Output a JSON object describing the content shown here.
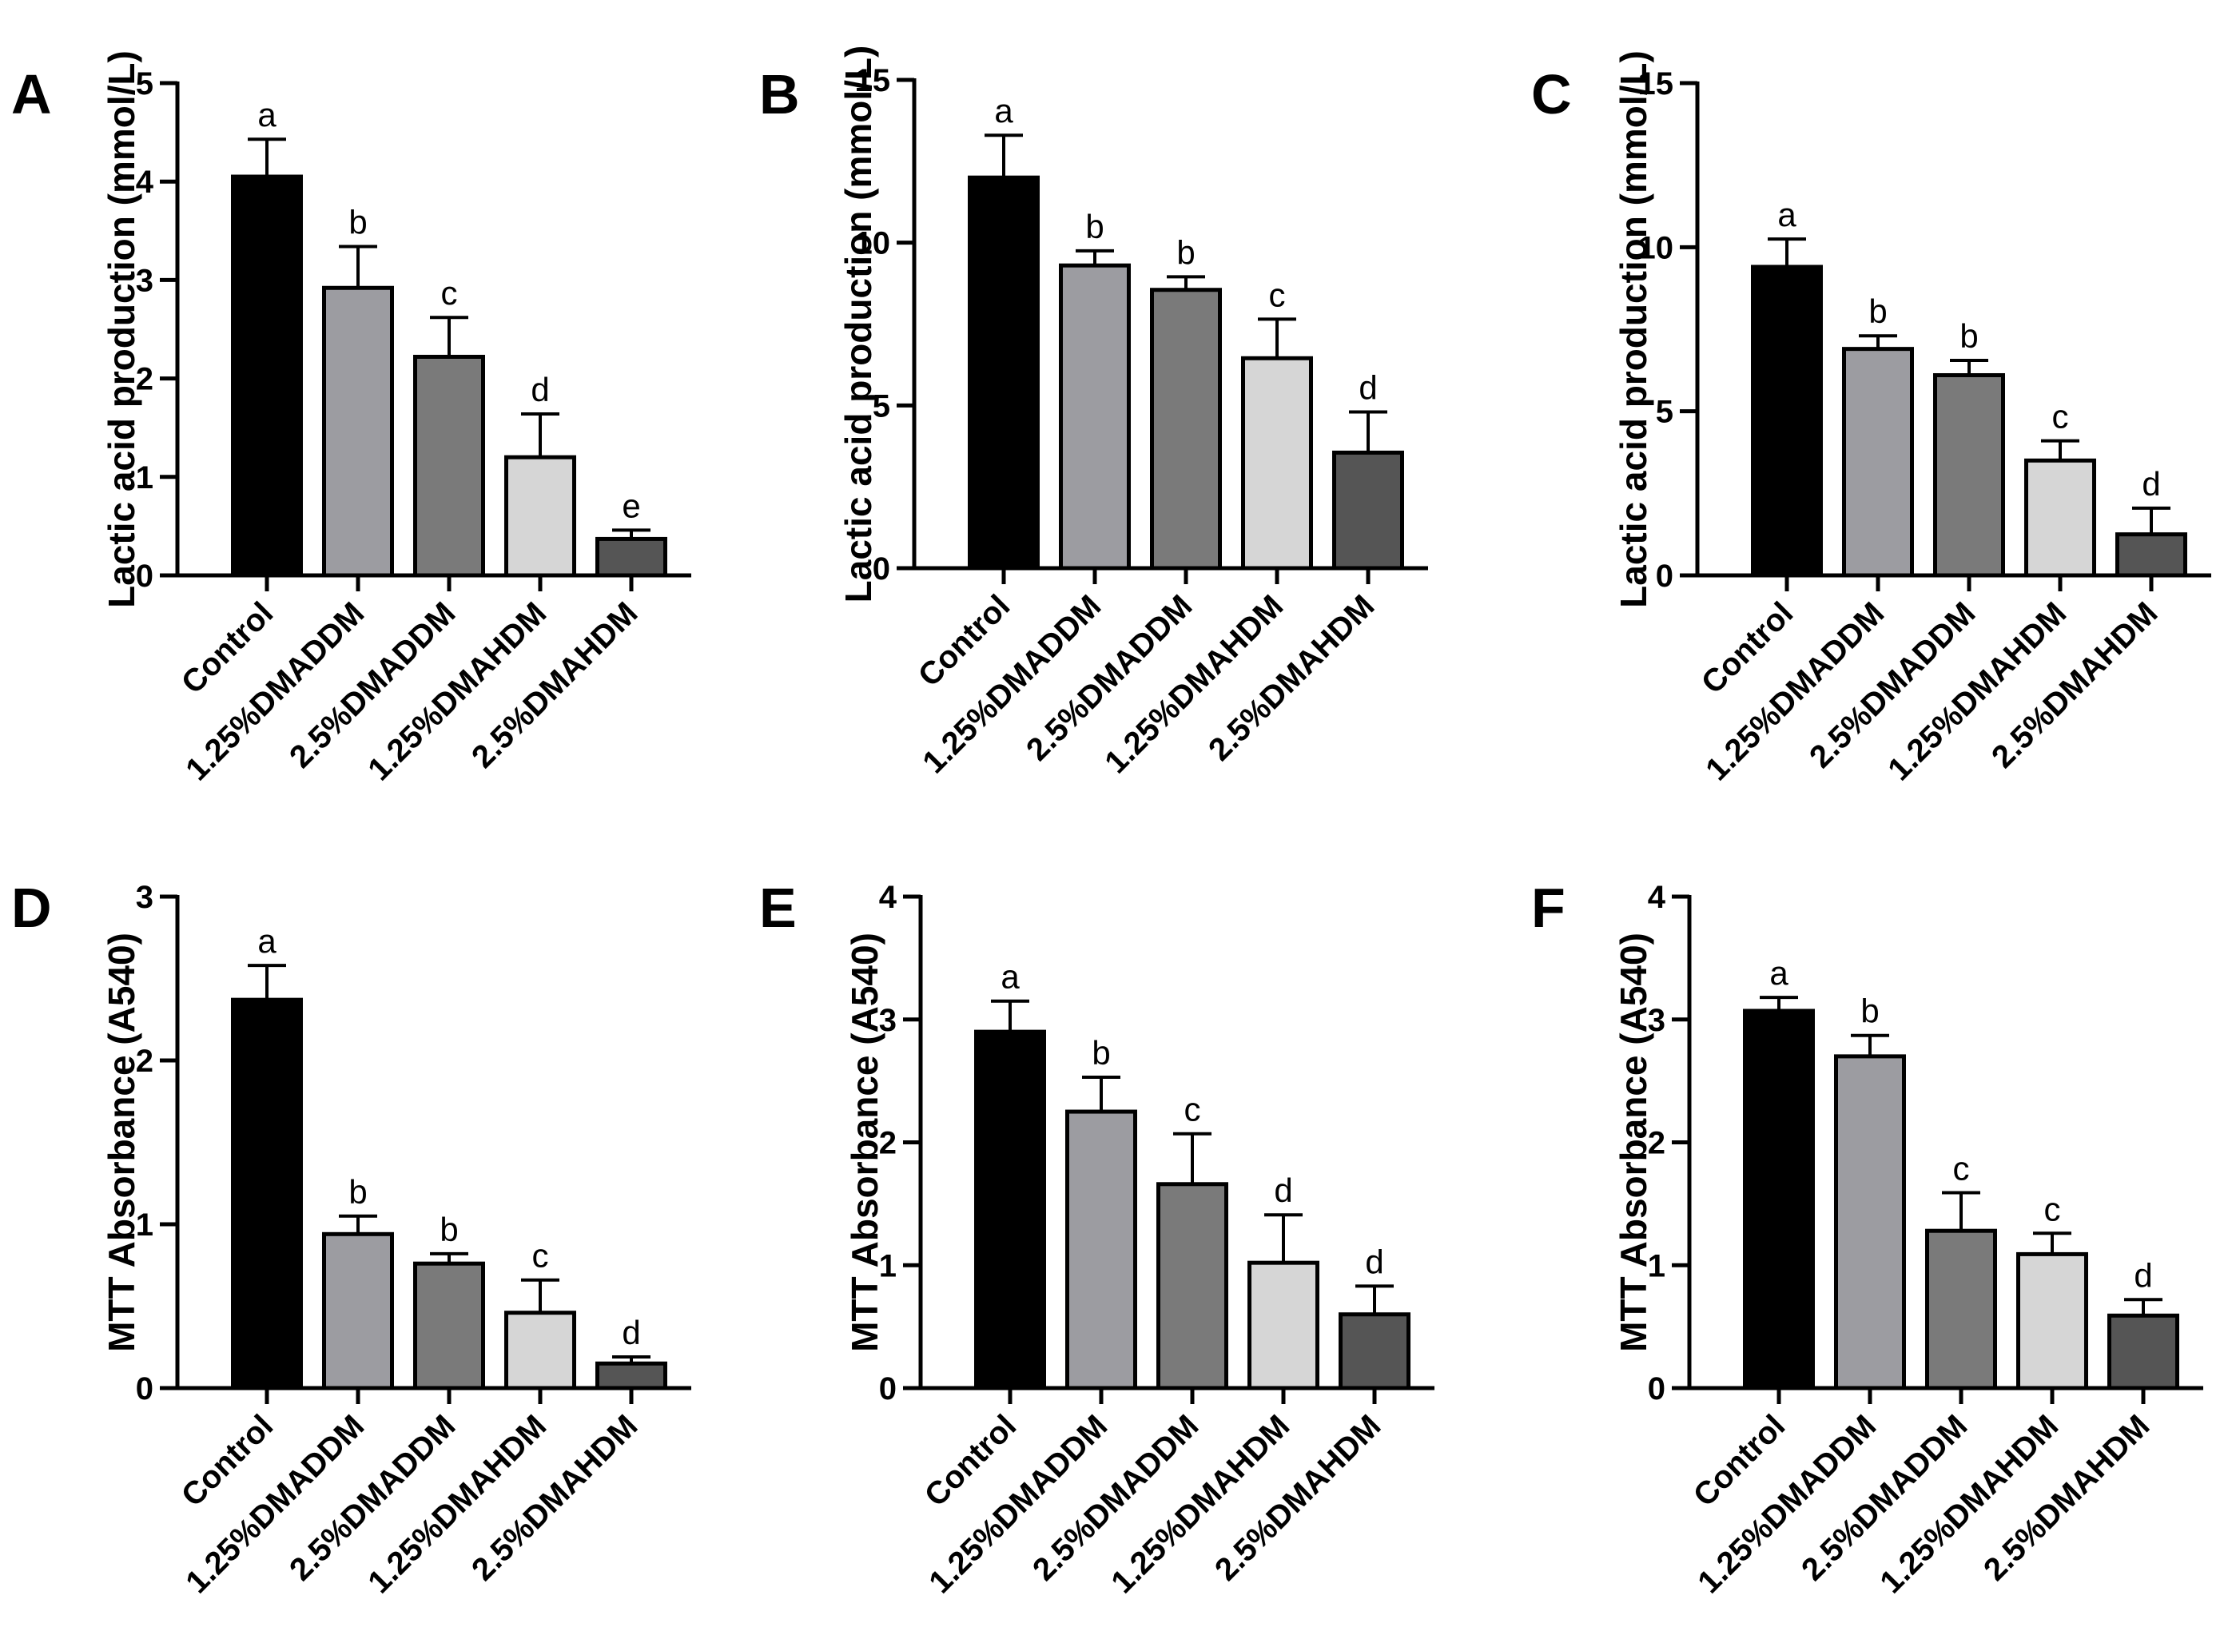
{
  "chart_data": [
    {
      "type": "bar",
      "panel": "A",
      "ylabel": "Lactic acid production (mmol/L)",
      "ylim": [
        0,
        5
      ],
      "yticks": [
        0,
        1,
        2,
        3,
        4,
        5
      ],
      "categories": [
        "Control",
        "1.25%DMADDM",
        "2.5%DMADDM",
        "1.25%DMAHDM",
        "2.5%DMAHDM"
      ],
      "values": [
        4.05,
        2.92,
        2.22,
        1.2,
        0.37
      ],
      "errors": [
        0.38,
        0.42,
        0.4,
        0.44,
        0.09
      ],
      "letters": [
        "a",
        "b",
        "c",
        "d",
        "e"
      ]
    },
    {
      "type": "bar",
      "panel": "B",
      "ylabel": "Lactic acid production (mmol/L)",
      "ylim": [
        0,
        15
      ],
      "yticks": [
        0,
        5,
        10,
        15
      ],
      "categories": [
        "Control",
        "1.25%DMADDM",
        "2.5%DMADDM",
        "1.25%DMAHDM",
        "2.5%DMAHDM"
      ],
      "values": [
        12.0,
        9.3,
        8.55,
        6.45,
        3.55
      ],
      "errors": [
        1.3,
        0.45,
        0.4,
        1.2,
        1.25
      ],
      "letters": [
        "a",
        "b",
        "b",
        "c",
        "d"
      ]
    },
    {
      "type": "bar",
      "panel": "C",
      "ylabel": "Lactic acid production (mmol/L)",
      "ylim": [
        0,
        15
      ],
      "yticks": [
        0,
        5,
        10,
        15
      ],
      "categories": [
        "Control",
        "1.25%DMADDM",
        "2.5%DMADDM",
        "1.25%DMAHDM",
        "2.5%DMAHDM"
      ],
      "values": [
        9.4,
        6.9,
        6.1,
        3.5,
        1.25
      ],
      "errors": [
        0.85,
        0.4,
        0.45,
        0.6,
        0.8
      ],
      "letters": [
        "a",
        "b",
        "b",
        "c",
        "d"
      ]
    },
    {
      "type": "bar",
      "panel": "D",
      "ylabel": "MTT Absorbance (A540)",
      "ylim": [
        0,
        3
      ],
      "yticks": [
        0,
        1,
        2,
        3
      ],
      "categories": [
        "Control",
        "1.25%DMADDM",
        "2.5%DMADDM",
        "1.25%DMAHDM",
        "2.5%DMAHDM"
      ],
      "values": [
        2.37,
        0.94,
        0.76,
        0.46,
        0.15
      ],
      "errors": [
        0.21,
        0.11,
        0.06,
        0.2,
        0.04
      ],
      "letters": [
        "a",
        "b",
        "b",
        "c",
        "d"
      ]
    },
    {
      "type": "bar",
      "panel": "E",
      "ylabel": "MTT Absorbance (A540)",
      "ylim": [
        0,
        4
      ],
      "yticks": [
        0,
        1,
        2,
        3,
        4
      ],
      "categories": [
        "Control",
        "1.25%DMADDM",
        "2.5%DMADDM",
        "1.25%DMAHDM",
        "2.5%DMAHDM"
      ],
      "values": [
        2.9,
        2.25,
        1.66,
        1.02,
        0.6
      ],
      "errors": [
        0.25,
        0.28,
        0.41,
        0.39,
        0.23
      ],
      "letters": [
        "a",
        "b",
        "c",
        "d",
        "d"
      ]
    },
    {
      "type": "bar",
      "panel": "F",
      "ylabel": "MTT Absorbance (A540)",
      "ylim": [
        0,
        4
      ],
      "yticks": [
        0,
        1,
        2,
        3,
        4
      ],
      "categories": [
        "Control",
        "1.25%DMADDM",
        "2.5%DMADDM",
        "1.25%DMAHDM",
        "2.5%DMAHDM"
      ],
      "values": [
        3.07,
        2.7,
        1.28,
        1.09,
        0.59
      ],
      "errors": [
        0.11,
        0.17,
        0.31,
        0.17,
        0.13
      ],
      "letters": [
        "a",
        "b",
        "c",
        "c",
        "d"
      ]
    }
  ],
  "bar_colors": [
    "#000000",
    "#9c9ca1",
    "#7a7a7a",
    "#d6d6d6",
    "#555555"
  ]
}
